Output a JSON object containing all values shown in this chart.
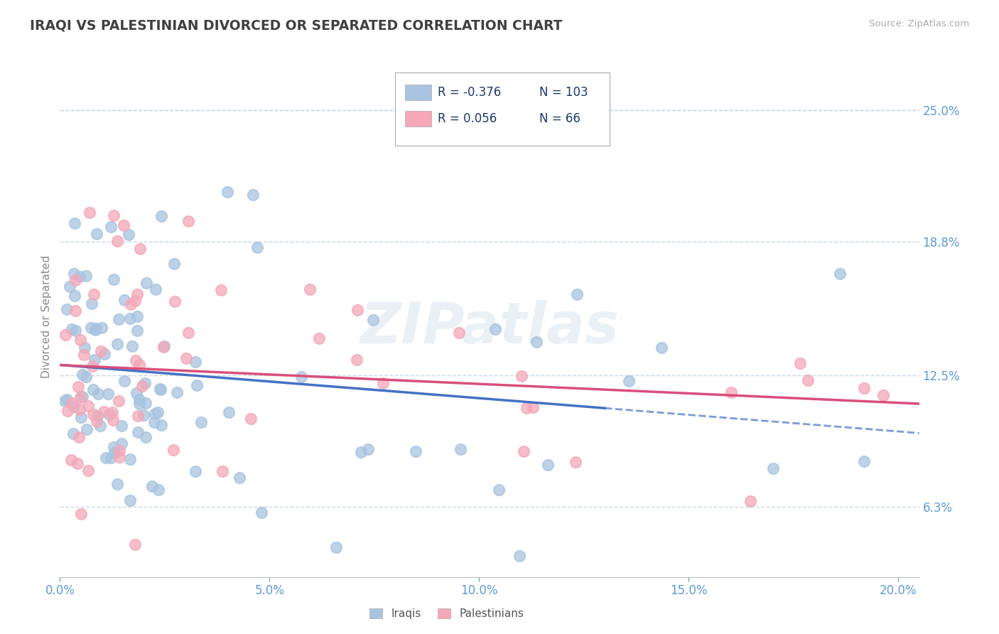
{
  "title": "IRAQI VS PALESTINIAN DIVORCED OR SEPARATED CORRELATION CHART",
  "source_text": "Source: ZipAtlas.com",
  "ylabel": "Divorced or Separated",
  "xlim": [
    0.0,
    0.205
  ],
  "ylim": [
    0.03,
    0.275
  ],
  "xtick_labels": [
    "0.0%",
    "5.0%",
    "10.0%",
    "15.0%",
    "20.0%"
  ],
  "xtick_vals": [
    0.0,
    0.05,
    0.1,
    0.15,
    0.2
  ],
  "ytick_labels": [
    "6.3%",
    "12.5%",
    "18.8%",
    "25.0%"
  ],
  "ytick_vals": [
    0.063,
    0.125,
    0.188,
    0.25
  ],
  "legend_r1": "-0.376",
  "legend_n1": "103",
  "legend_r2": "0.056",
  "legend_n2": "66",
  "color_iraqi": "#a8c4e0",
  "color_palestinian": "#f4a8b8",
  "color_iraqi_line": "#4472c4",
  "color_palestinian_line": "#d94f7a",
  "color_title": "#404040",
  "color_ytick": "#5b9bd5",
  "color_xtick": "#5b9bd5",
  "color_legend_text": "#1a3a6b",
  "color_grid": "#c8d8e8",
  "background_color": "#ffffff",
  "watermark_text": "ZIPatlas",
  "seed": 12345
}
